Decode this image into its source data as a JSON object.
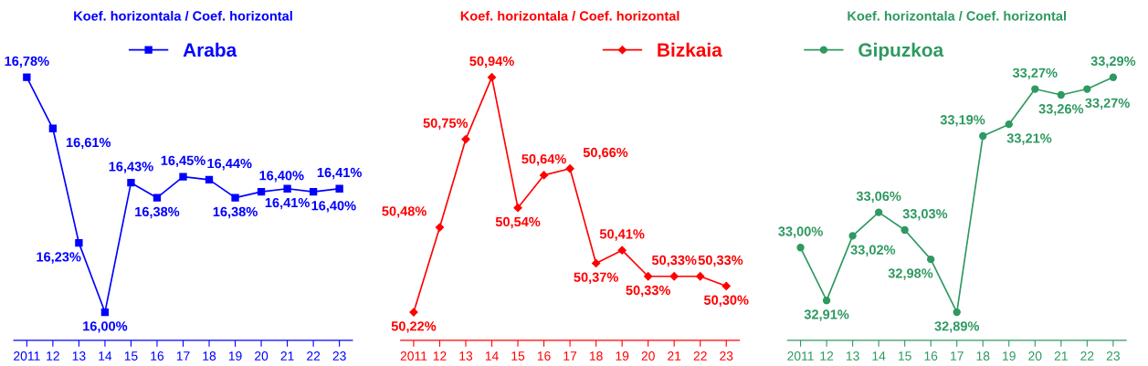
{
  "chart_data": [
    {
      "type": "line",
      "title": "Koef. horizontala / Coef. horizontal",
      "categories": [
        "2011",
        "12",
        "13",
        "14",
        "15",
        "16",
        "17",
        "18",
        "19",
        "20",
        "21",
        "22",
        "23"
      ],
      "marker": "square",
      "legend": "top",
      "tick_labels": "x",
      "grid": false,
      "series": [
        {
          "name": "Araba",
          "color": "#0000ff",
          "values": [
            16.78,
            16.61,
            16.23,
            16.0,
            16.43,
            16.38,
            16.45,
            16.44,
            16.38,
            16.4,
            16.41,
            16.4,
            16.41
          ],
          "value_labels": [
            "16,78%",
            "16,61%",
            "16,23%",
            "16,00%",
            "16,43%",
            "16,38%",
            "16,45%",
            "16,44%",
            "16,38%",
            "16,40%",
            "16,41%",
            "16,40%",
            "16,41%"
          ]
        }
      ]
    },
    {
      "type": "line",
      "title": "Koef. horizontala / Coef. horizontal",
      "categories": [
        "2011",
        "12",
        "13",
        "14",
        "15",
        "16",
        "17",
        "18",
        "19",
        "20",
        "21",
        "22",
        "23"
      ],
      "marker": "diamond",
      "legend": "top right",
      "tick_labels": "x",
      "grid": false,
      "series": [
        {
          "name": "Bizkaia",
          "color": "#ff0000",
          "values": [
            50.22,
            50.48,
            50.75,
            50.94,
            50.54,
            50.64,
            50.66,
            50.37,
            50.41,
            50.33,
            50.33,
            50.33,
            50.3
          ],
          "value_labels": [
            "50,22%",
            "50,48%",
            "50,75%",
            "50,94%",
            "50,54%",
            "50,64%",
            "50,66%",
            "50,37%",
            "50,41%",
            "50,33%",
            "50,33%",
            "50,33%",
            "50,30%"
          ]
        }
      ]
    },
    {
      "type": "line",
      "title": "Koef. horizontala / Coef. horizontal",
      "categories": [
        "2011",
        "12",
        "13",
        "14",
        "15",
        "16",
        "17",
        "18",
        "19",
        "20",
        "21",
        "22",
        "23"
      ],
      "marker": "circle",
      "legend": "top left",
      "tick_labels": "x",
      "grid": false,
      "series": [
        {
          "name": "Gipuzkoa",
          "color": "#2e9960",
          "values": [
            33.0,
            32.91,
            33.02,
            33.06,
            33.03,
            32.98,
            32.89,
            33.19,
            33.21,
            33.27,
            33.26,
            33.27,
            33.29
          ],
          "value_labels": [
            "33,00%",
            "32,91%",
            "33,02%",
            "33,06%",
            "33,03%",
            "32,98%",
            "32,89%",
            "33,19%",
            "33,21%",
            "33,27%",
            "33,26%",
            "33,27%",
            "33,29%"
          ]
        }
      ]
    }
  ]
}
